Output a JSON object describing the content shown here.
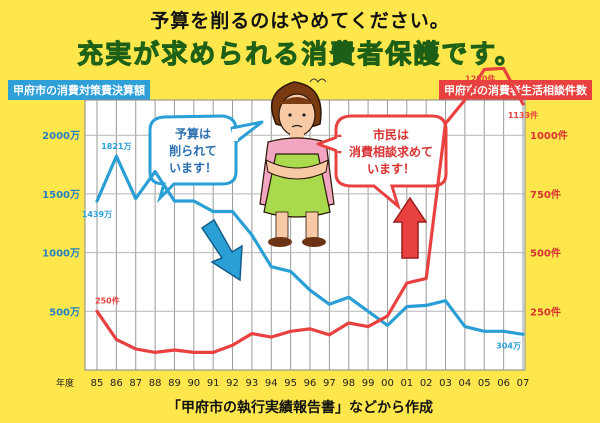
{
  "header": {
    "line1": "予算を削るのはやめてください。",
    "line2": "充実が求められる消費者保護です。"
  },
  "left_axis_title": "甲府市の消費対策費決算額",
  "right_axis_title": "甲府市の消費者生活相談件数",
  "footer": "「甲府市の執行実績報告書」などから作成",
  "bubbles": {
    "left": [
      "予算は",
      "削られて",
      "います！"
    ],
    "right": [
      "市民は",
      "消費相談求めて",
      "います！"
    ]
  },
  "chart_data": {
    "type": "line",
    "x_prefix": "年度",
    "categories": [
      "85",
      "86",
      "87",
      "88",
      "89",
      "90",
      "91",
      "92",
      "93",
      "94",
      "95",
      "96",
      "97",
      "98",
      "99",
      "00",
      "01",
      "02",
      "03",
      "04",
      "05",
      "06",
      "07"
    ],
    "y_left": {
      "ylim": [
        0,
        2300
      ],
      "ticks": [
        500,
        1000,
        1500,
        2000
      ],
      "tick_labels": [
        "500万",
        "1000万",
        "1500万",
        "2000万"
      ]
    },
    "y_right": {
      "ylim": [
        0,
        1150
      ],
      "ticks": [
        250,
        500,
        750,
        1000
      ],
      "tick_labels": [
        "250件",
        "500件",
        "750件",
        "1000件"
      ]
    },
    "series": [
      {
        "axis": "left",
        "color": "#2a9fd6",
        "values": [
          1439,
          1821,
          1460,
          1690,
          1440,
          1440,
          1350,
          1350,
          1150,
          880,
          840,
          680,
          560,
          620,
          500,
          380,
          540,
          550,
          590,
          370,
          330,
          330,
          304
        ]
      },
      {
        "axis": "right",
        "color": "#e8413f",
        "values": [
          250,
          130,
          90,
          75,
          85,
          75,
          75,
          105,
          155,
          140,
          165,
          175,
          150,
          200,
          185,
          230,
          370,
          390,
          1050,
          1150,
          1280,
          1285,
          1133
        ]
      }
    ],
    "point_labels": [
      {
        "series": 0,
        "index": 0,
        "text": "1439万"
      },
      {
        "series": 0,
        "index": 1,
        "text": "1821万"
      },
      {
        "series": 0,
        "index": 22,
        "text": "304万"
      },
      {
        "series": 1,
        "index": 0,
        "text": "250件"
      },
      {
        "series": 1,
        "index": 20,
        "text": "1280件"
      },
      {
        "series": 1,
        "index": 22,
        "text": "1133件"
      }
    ]
  }
}
